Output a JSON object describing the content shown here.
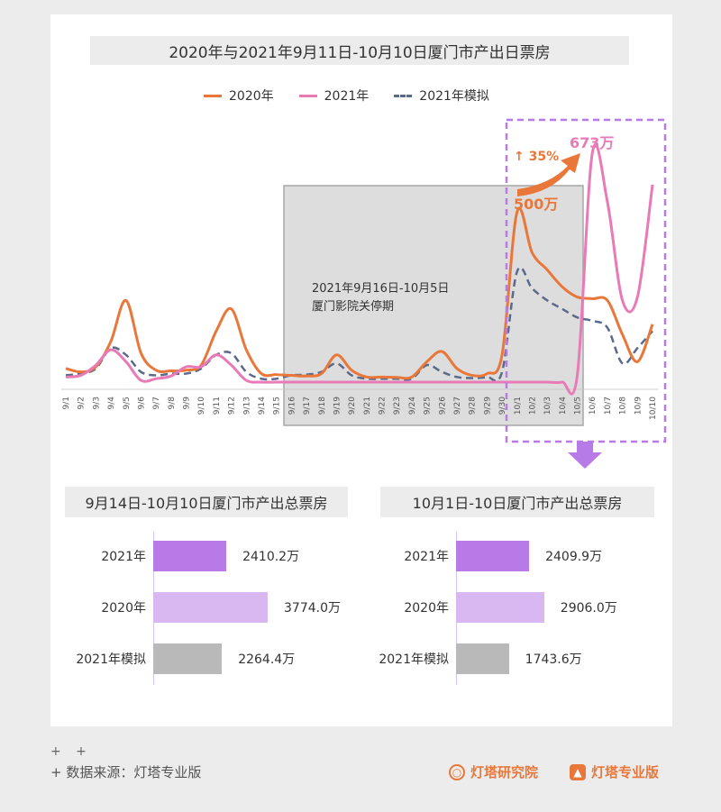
{
  "colors": {
    "y2020": "#e9773a",
    "y2021": "#e87ab7",
    "sim2021": "#5b6a8a",
    "purple": "#b77ae6",
    "purple_light": "#d9b8f2",
    "gray": "#b9b9b9",
    "dashed_box": "#b77ae6"
  },
  "chart_data": [
    {
      "type": "line",
      "title": "2020年与2021年9月11日-10月10日厦门市产出日票房",
      "categories": [
        "9/1",
        "9/2",
        "9/3",
        "9/4",
        "9/5",
        "9/6",
        "9/7",
        "9/8",
        "9/9",
        "9/10",
        "9/11",
        "9/12",
        "9/13",
        "9/14",
        "9/15",
        "9/16",
        "9/17",
        "9/18",
        "9/19",
        "9/20",
        "9/21",
        "9/22",
        "9/23",
        "9/24",
        "9/25",
        "9/26",
        "9/27",
        "9/28",
        "9/29",
        "9/30",
        "10/1",
        "10/2",
        "10/3",
        "10/4",
        "10/5",
        "10/6",
        "10/7",
        "10/8",
        "10/9",
        "10/10"
      ],
      "series": [
        {
          "name": "2020年",
          "values": [
            40,
            30,
            45,
            120,
            240,
            85,
            35,
            33,
            35,
            50,
            150,
            215,
            95,
            25,
            22,
            20,
            18,
            25,
            80,
            35,
            15,
            15,
            14,
            15,
            60,
            90,
            40,
            20,
            25,
            80,
            500,
            380,
            330,
            280,
            250,
            245,
            240,
            140,
            60,
            170
          ]
        },
        {
          "name": "2021年",
          "values": [
            15,
            20,
            50,
            95,
            60,
            5,
            10,
            18,
            45,
            45,
            80,
            50,
            5,
            0,
            0,
            0,
            0,
            0,
            0,
            0,
            0,
            0,
            0,
            0,
            0,
            0,
            0,
            0,
            0,
            0,
            0,
            0,
            0,
            0,
            20,
            673,
            530,
            240,
            250,
            580
          ]
        },
        {
          "name": "2021年模拟",
          "values": [
            20,
            25,
            40,
            100,
            80,
            30,
            20,
            25,
            25,
            40,
            80,
            85,
            30,
            10,
            10,
            20,
            22,
            30,
            55,
            20,
            10,
            10,
            10,
            10,
            50,
            30,
            15,
            12,
            15,
            30,
            325,
            275,
            240,
            215,
            190,
            180,
            160,
            55,
            100,
            150
          ]
        }
      ],
      "ylim": [
        0,
        720
      ],
      "legend_position": "top",
      "annotations": {
        "closure_note_line1": "2021年9月16日-10月5日",
        "closure_note_line2": "厦门影院关停期",
        "growth_label": "↑ 35%",
        "peak_2020_label": "500万",
        "peak_2021_label": "673万"
      }
    },
    {
      "type": "bar",
      "title": "9月14日-10月10日厦门市产出总票房",
      "categories": [
        "2021年",
        "2020年",
        "2021年模拟"
      ],
      "values": [
        2410.2,
        3774.0,
        2264.4
      ],
      "value_labels": [
        "2410.2万",
        "3774.0万",
        "2264.4万"
      ],
      "orientation": "horizontal"
    },
    {
      "type": "bar",
      "title": "10月1日-10日厦门市产出总票房",
      "categories": [
        "2021年",
        "2020年",
        "2021年模拟"
      ],
      "values": [
        2409.9,
        2906.0,
        1743.6
      ],
      "value_labels": [
        "2409.9万",
        "2906.0万",
        "1743.6万"
      ],
      "orientation": "horizontal"
    }
  ],
  "footer": {
    "plus_marks": "+ +",
    "source": "+  数据来源：灯塔专业版",
    "brand1": "灯塔研究院",
    "brand2": "灯塔专业版"
  }
}
